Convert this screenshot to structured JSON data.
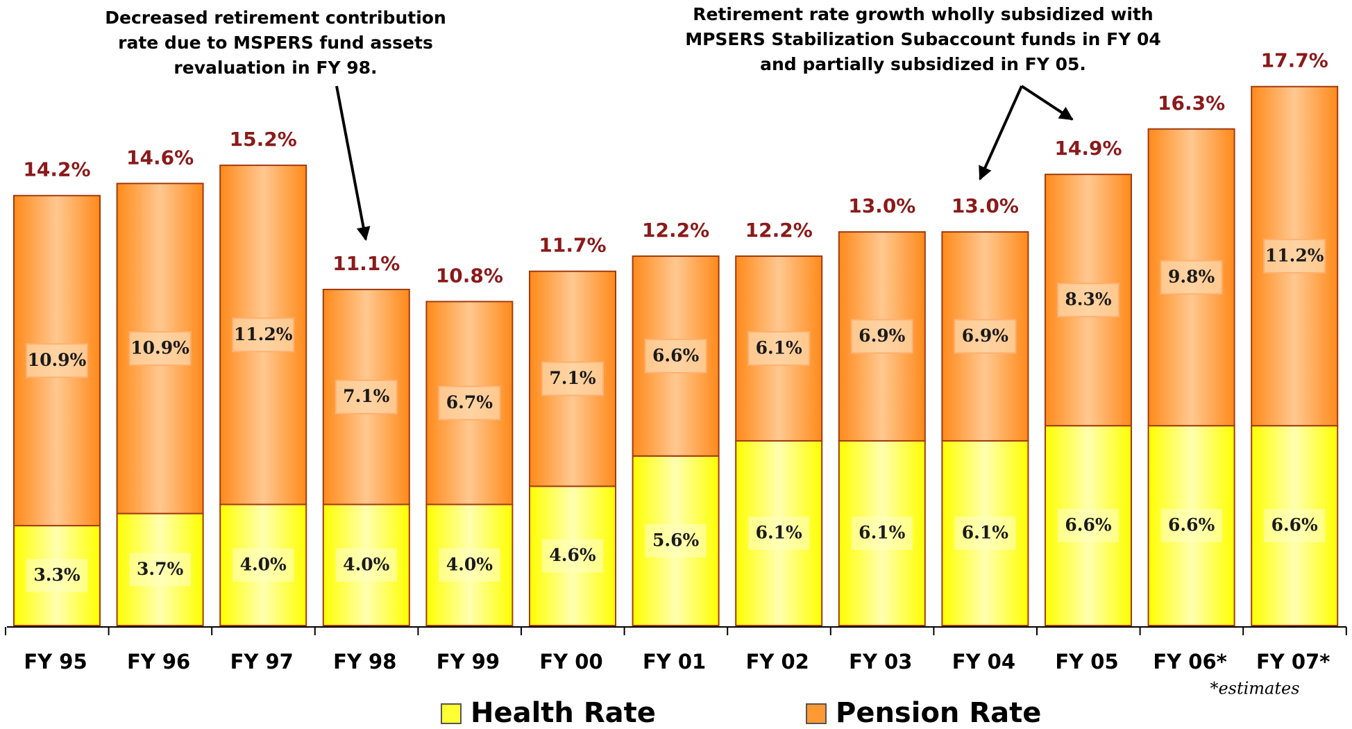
{
  "chart_data": {
    "type": "stacked_bar",
    "categories": [
      "FY 95",
      "FY 96",
      "FY 97",
      "FY 98",
      "FY 99",
      "FY 00",
      "FY 01",
      "FY 02",
      "FY 03",
      "FY 04",
      "FY 05",
      "FY 06*",
      "FY 07*"
    ],
    "series": [
      {
        "name": "Health Rate",
        "color": "#ffff33",
        "values": [
          3.3,
          3.7,
          4.0,
          4.0,
          4.0,
          4.6,
          5.6,
          6.1,
          6.1,
          6.1,
          6.6,
          6.6,
          6.6
        ],
        "value_labels": [
          "3.3%",
          "3.7%",
          "4.0%",
          "4.0%",
          "4.0%",
          "4.6%",
          "5.6%",
          "6.1%",
          "6.1%",
          "6.1%",
          "6.6%",
          "6.6%",
          "6.6%"
        ]
      },
      {
        "name": "Pension Rate",
        "color": "#ff9933",
        "values": [
          10.9,
          10.9,
          11.2,
          7.1,
          6.7,
          7.1,
          6.6,
          6.1,
          6.9,
          6.9,
          8.3,
          9.8,
          11.2
        ],
        "value_labels": [
          "10.9%",
          "10.9%",
          "11.2%",
          "7.1%",
          "6.7%",
          "7.1%",
          "6.6%",
          "6.1%",
          "6.9%",
          "6.9%",
          "8.3%",
          "9.8%",
          "11.2%"
        ]
      }
    ],
    "totals": {
      "values": [
        14.2,
        14.6,
        15.2,
        11.1,
        10.8,
        11.7,
        12.2,
        12.2,
        13.0,
        13.0,
        14.9,
        16.3,
        17.7
      ],
      "value_labels": [
        "14.2%",
        "14.6%",
        "15.2%",
        "11.1%",
        "10.8%",
        "11.7%",
        "12.2%",
        "12.2%",
        "13.0%",
        "13.0%",
        "14.9%",
        "16.3%",
        "17.7%"
      ]
    },
    "annotations": [
      {
        "lines": [
          "Decreased retirement contribution",
          "rate due to MSPERS fund assets",
          "revaluation in FY 98."
        ]
      },
      {
        "lines": [
          "Retirement rate growth wholly subsidized with",
          "MPSERS Stabilization Subaccount funds in FY 04",
          "and partially subsidized in FY 05."
        ]
      }
    ],
    "footnote": "*estimates",
    "legend": "bottom"
  }
}
